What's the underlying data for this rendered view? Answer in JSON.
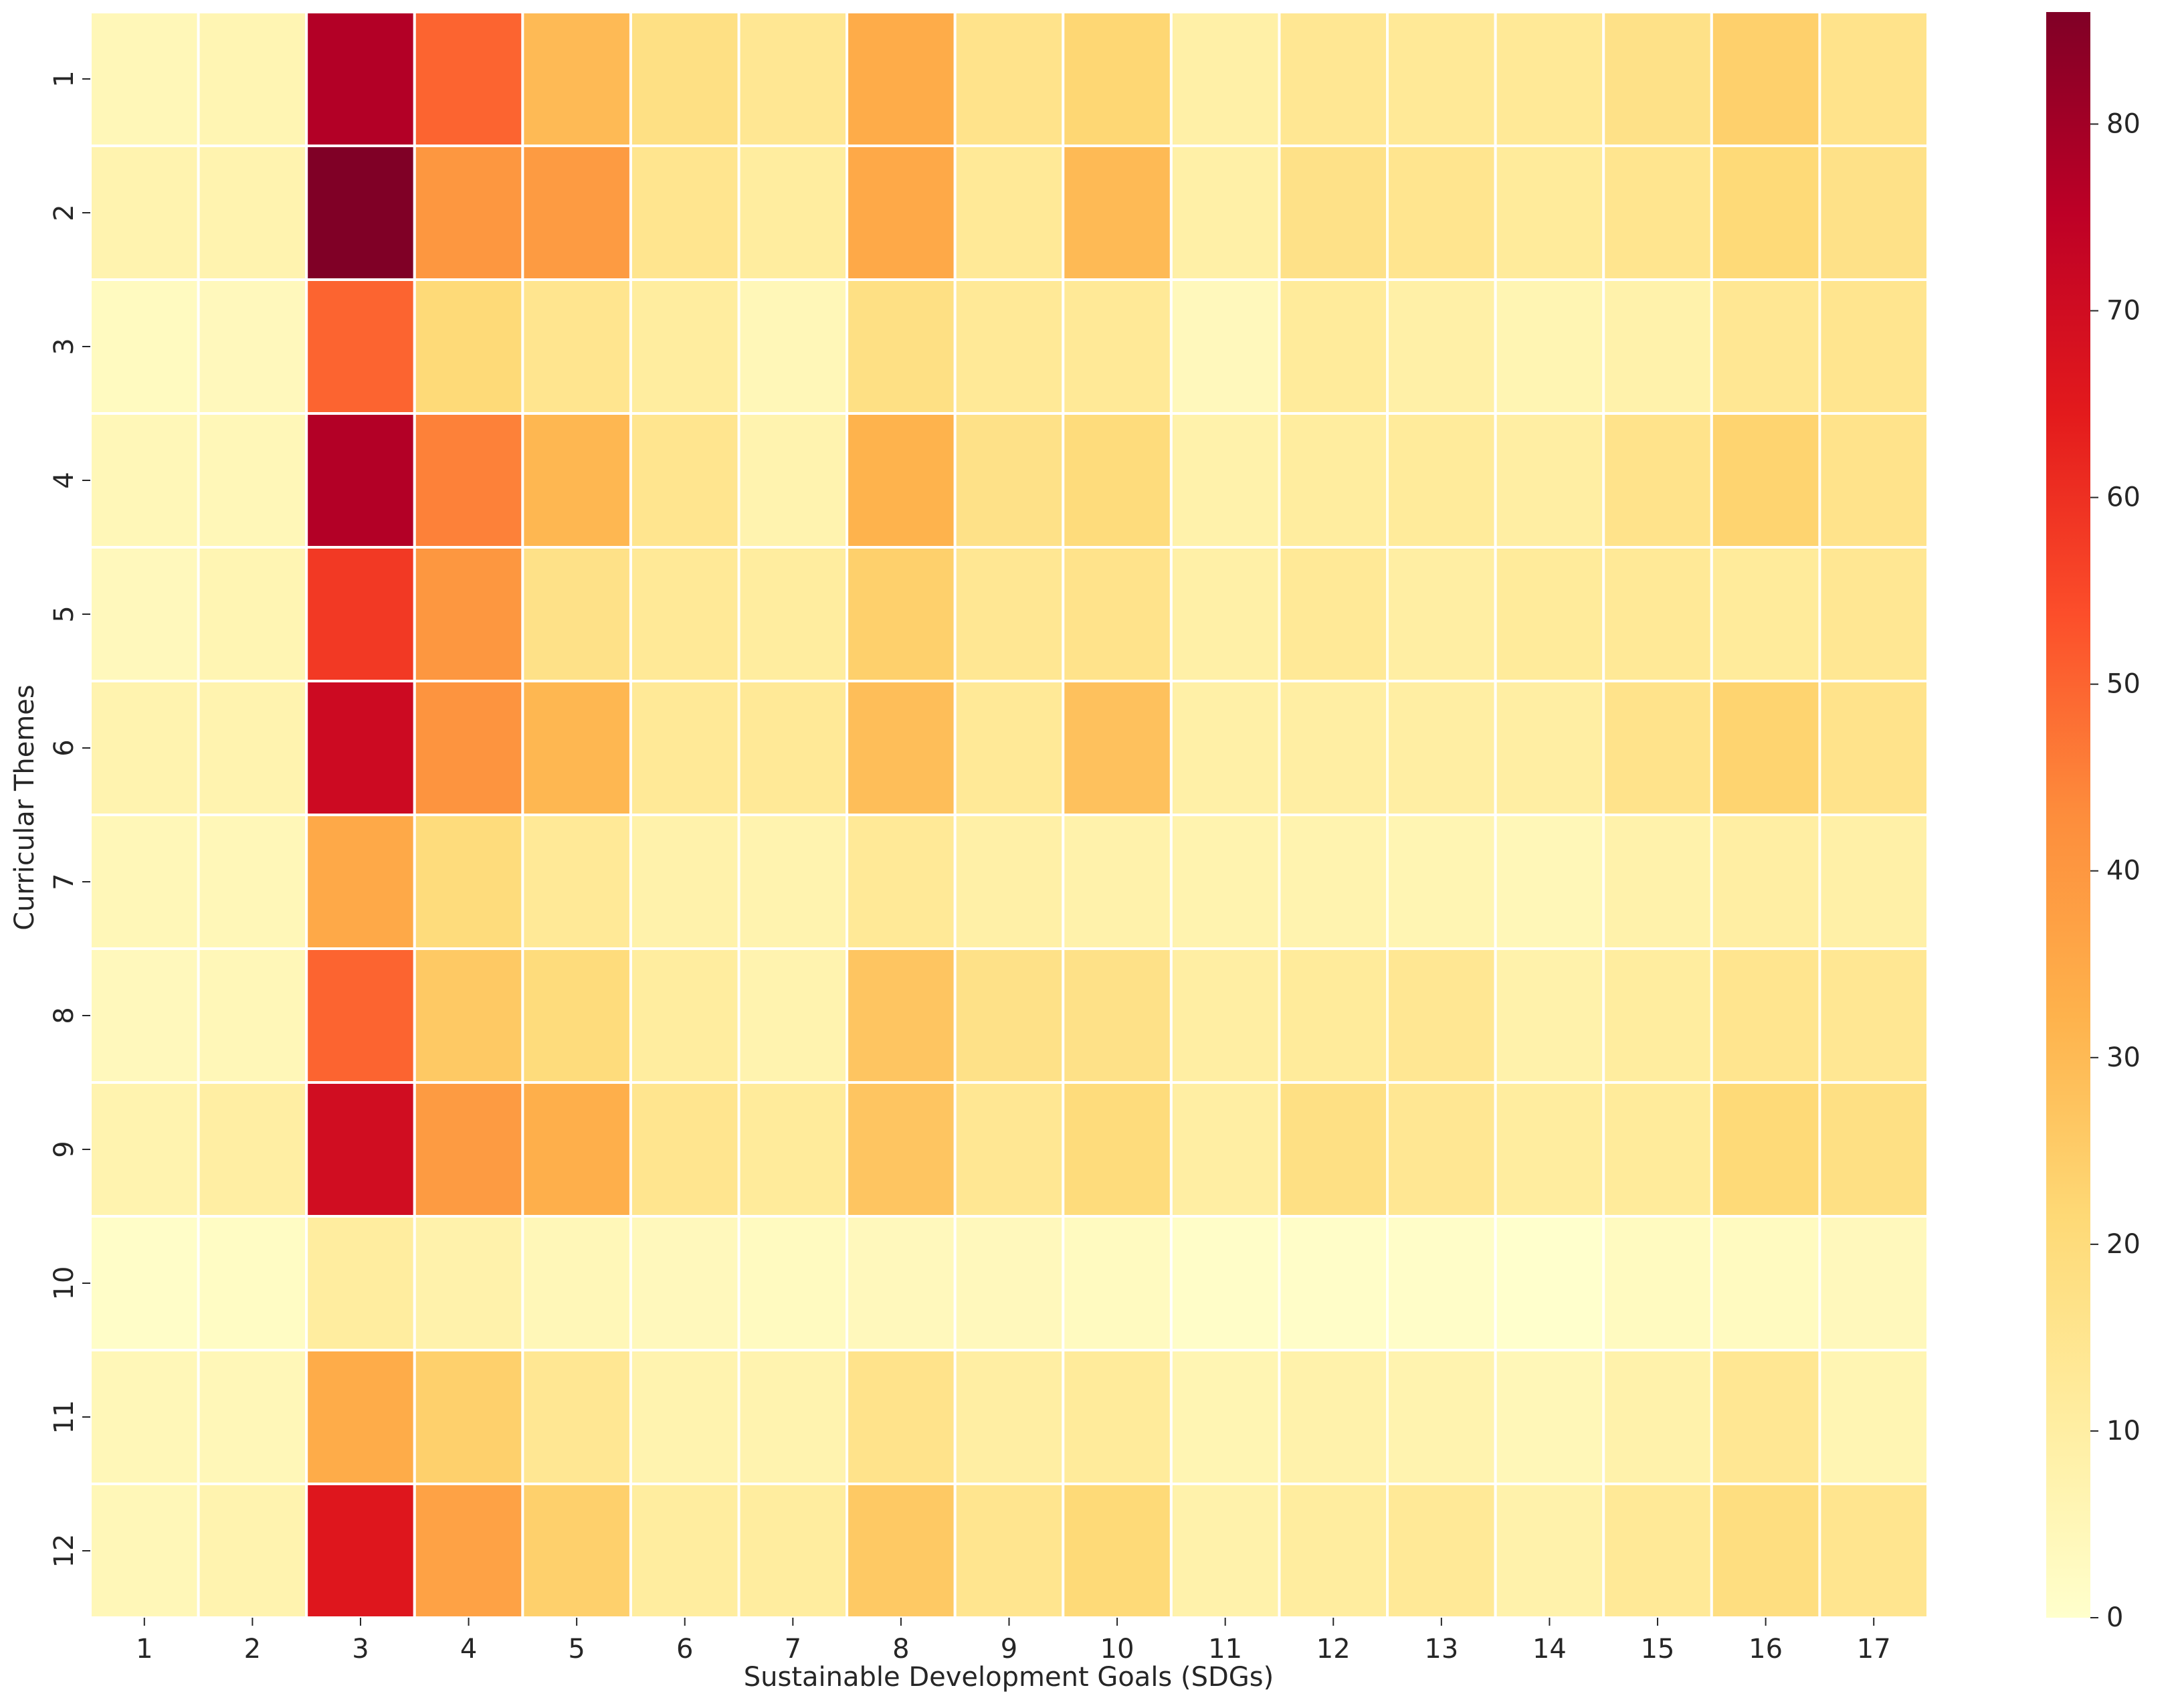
{
  "chart_data": {
    "type": "heatmap",
    "title": "",
    "xlabel": "Sustainable Development Goals (SDGs)",
    "ylabel": "Curricular Themes",
    "x_categories": [
      "1",
      "2",
      "3",
      "4",
      "5",
      "6",
      "7",
      "8",
      "9",
      "10",
      "11",
      "12",
      "13",
      "14",
      "15",
      "16",
      "17"
    ],
    "y_categories": [
      "1",
      "2",
      "3",
      "4",
      "5",
      "6",
      "7",
      "8",
      "9",
      "10",
      "11",
      "12"
    ],
    "values": [
      [
        5,
        6,
        77,
        50,
        30,
        18,
        14,
        34,
        16,
        22,
        9,
        14,
        13,
        13,
        17,
        24,
        16
      ],
      [
        7,
        7,
        86,
        40,
        39,
        15,
        11,
        35,
        13,
        30,
        9,
        17,
        15,
        12,
        15,
        21,
        17
      ],
      [
        3,
        4,
        50,
        21,
        15,
        11,
        5,
        18,
        13,
        13,
        4,
        12,
        9,
        6,
        8,
        14,
        15
      ],
      [
        5,
        5,
        77,
        45,
        31,
        15,
        7,
        32,
        17,
        20,
        8,
        11,
        12,
        10,
        16,
        23,
        16
      ],
      [
        4,
        6,
        58,
        40,
        17,
        13,
        11,
        24,
        14,
        16,
        9,
        13,
        10,
        12,
        13,
        12,
        14
      ],
      [
        7,
        7,
        71,
        41,
        31,
        13,
        13,
        29,
        13,
        28,
        9,
        10,
        10,
        10,
        16,
        23,
        16
      ],
      [
        5,
        5,
        35,
        20,
        13,
        8,
        7,
        13,
        9,
        8,
        7,
        7,
        6,
        5,
        8,
        10,
        9
      ],
      [
        4,
        5,
        50,
        26,
        20,
        11,
        7,
        27,
        17,
        17,
        10,
        12,
        14,
        8,
        11,
        15,
        14
      ],
      [
        7,
        10,
        70,
        39,
        33,
        15,
        12,
        27,
        14,
        20,
        10,
        18,
        14,
        11,
        12,
        21,
        18
      ],
      [
        1,
        2,
        11,
        8,
        5,
        4,
        3,
        4,
        4,
        3,
        1,
        1,
        1,
        0,
        3,
        3,
        4
      ],
      [
        5,
        5,
        34,
        24,
        14,
        7,
        7,
        16,
        10,
        12,
        6,
        8,
        7,
        5,
        8,
        14,
        6
      ],
      [
        5,
        7,
        66,
        37,
        24,
        11,
        11,
        26,
        15,
        21,
        8,
        11,
        13,
        8,
        13,
        19,
        15
      ]
    ],
    "colorbar": {
      "min": 0,
      "max": 86,
      "ticks": [
        0,
        10,
        20,
        30,
        40,
        50,
        60,
        70,
        80
      ],
      "colormap": "YlOrRd",
      "stops": [
        "#ffffcc",
        "#ffeda0",
        "#fed976",
        "#feb24c",
        "#fd8d3c",
        "#fc4e2a",
        "#e31a1c",
        "#bd0026",
        "#800026"
      ]
    },
    "grid": false,
    "cell_border_color": "#ffffff"
  }
}
